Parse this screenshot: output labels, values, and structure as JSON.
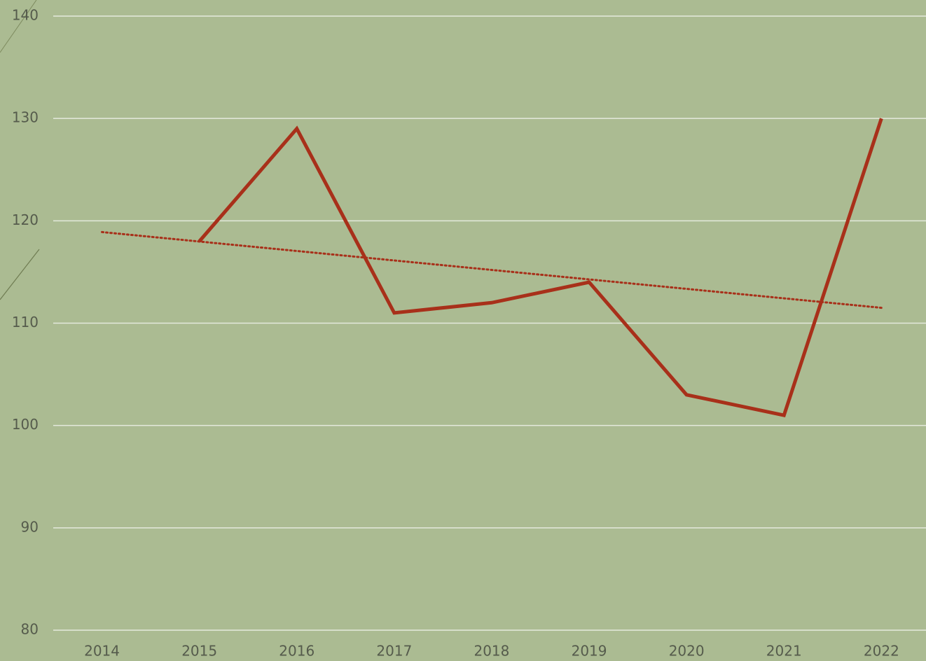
{
  "chart_data": {
    "type": "line",
    "categories": [
      "2014",
      "2015",
      "2016",
      "2017",
      "2018",
      "2019",
      "2020",
      "2021",
      "2022"
    ],
    "series": [
      {
        "color": "#a8301a",
        "values": [
          null,
          118,
          129,
          111,
          112,
          114,
          103,
          101,
          130
        ]
      }
    ],
    "trendline": {
      "color": "#a8301a",
      "style": "dotted",
      "start": 118.9,
      "end": 111.5
    },
    "ylim": [
      80,
      140
    ],
    "yticks": [
      80,
      90,
      100,
      110,
      120,
      130,
      140
    ],
    "grid": true
  }
}
